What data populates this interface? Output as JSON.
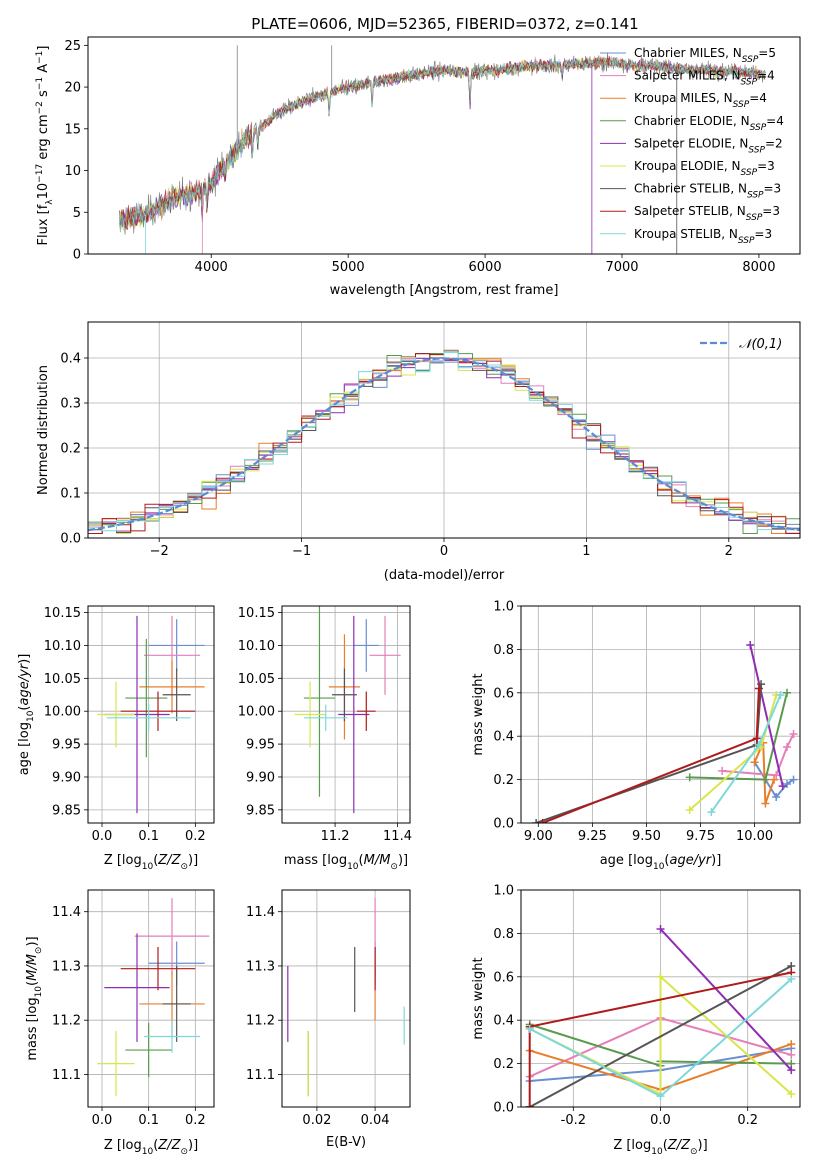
{
  "figure_title": "PLATE=0606, MJD=52365, FIBERID=0372, z=0.141",
  "series_colors": [
    "#6a8fd0",
    "#e57fb8",
    "#e87e2a",
    "#5a9a4e",
    "#8e2db3",
    "#d8e64c",
    "#555555",
    "#b01a1a",
    "#7dd8dc"
  ],
  "chart_data": [
    {
      "id": "spectrum",
      "type": "line",
      "title": "PLATE=0606, MJD=52365, FIBERID=0372, z=0.141",
      "xlabel": "wavelength [Angstrom, rest frame]",
      "ylabel": "Flux [f_λ 10^-17 erg cm^-2 s^-1 A^-1]",
      "xlim": [
        3100,
        8300
      ],
      "ylim": [
        0,
        26
      ],
      "xticks": [
        4000,
        5000,
        6000,
        7000,
        8000
      ],
      "yticks": [
        0,
        5,
        10,
        15,
        20,
        25
      ],
      "legend_position": "top-right",
      "grid": false,
      "series": [
        {
          "name": "Chabrier MILES, N_SSP=5"
        },
        {
          "name": "Salpeter MILES, N_SSP=4"
        },
        {
          "name": "Kroupa MILES, N_SSP=4"
        },
        {
          "name": "Chabrier ELODIE, N_SSP=4"
        },
        {
          "name": "Salpeter ELODIE, N_SSP=2"
        },
        {
          "name": "Kroupa ELODIE, N_SSP=3"
        },
        {
          "name": "Chabrier STELIB, N_SSP=3"
        },
        {
          "name": "Salpeter STELIB, N_SSP=3"
        },
        {
          "name": "Kroupa STELIB, N_SSP=3"
        }
      ],
      "observed_continuum": {
        "x": [
          3330,
          3500,
          3700,
          3900,
          4000,
          4100,
          4300,
          4500,
          4700,
          4900,
          5100,
          5300,
          5500,
          5700,
          5900,
          6100,
          6300,
          6500,
          6700,
          6900,
          7100,
          7300,
          7500,
          7700,
          7900,
          8050
        ],
        "y": [
          4,
          4.5,
          6.5,
          7.5,
          8.5,
          11,
          14.5,
          17,
          18.5,
          19.5,
          20.3,
          21,
          21.5,
          22,
          21.8,
          22,
          22.5,
          22.6,
          22.8,
          23,
          22.6,
          22.5,
          22,
          22,
          21.8,
          21.5
        ]
      }
    },
    {
      "id": "residuals",
      "type": "step",
      "xlabel": "(data-model)/error",
      "ylabel": "Normed distribution",
      "xlim": [
        -2.5,
        2.5
      ],
      "ylim": [
        0,
        0.48
      ],
      "xticks": [
        -2,
        -1,
        0,
        1,
        2
      ],
      "yticks": [
        0.0,
        0.1,
        0.2,
        0.3,
        0.4
      ],
      "grid": true,
      "legend": "𝒩(0,1)",
      "legend_position": "top-right",
      "histogram_bin_width": 0.1
    },
    {
      "id": "age_vs_Z",
      "type": "errorbar",
      "xlabel": "Z [log10(Z/Z⊙)]",
      "ylabel": "age  [log10(age/yr)]",
      "xlim": [
        -0.03,
        0.24
      ],
      "ylim": [
        9.83,
        10.16
      ],
      "xticks": [
        0.0,
        0.1,
        0.2
      ],
      "yticks": [
        9.85,
        9.9,
        9.95,
        10.0,
        10.05,
        10.1,
        10.15
      ],
      "grid": true,
      "points": [
        {
          "x": 0.16,
          "xerr": 0.06,
          "y": 10.1,
          "yerr": 0.04
        },
        {
          "x": 0.15,
          "xerr": 0.06,
          "y": 10.085,
          "yerr": 0.06
        },
        {
          "x": 0.15,
          "xerr": 0.07,
          "y": 10.037,
          "yerr": 0.04
        },
        {
          "x": 0.095,
          "xerr": 0.045,
          "y": 10.02,
          "yerr": 0.09
        },
        {
          "x": 0.075,
          "xerr": 0.07,
          "y": 9.995,
          "yerr": 0.15
        },
        {
          "x": 0.03,
          "xerr": 0.04,
          "y": 9.995,
          "yerr": 0.05
        },
        {
          "x": 0.16,
          "xerr": 0.03,
          "y": 10.025,
          "yerr": 0.04
        },
        {
          "x": 0.12,
          "xerr": 0.08,
          "y": 10.0,
          "yerr": 0.03
        },
        {
          "x": 0.1,
          "xerr": 0.09,
          "y": 9.99,
          "yerr": 0.02
        }
      ]
    },
    {
      "id": "age_vs_mass",
      "type": "errorbar",
      "xlabel": "mass [log10(M/M⊙)]",
      "ylabel": "",
      "xlim": [
        11.03,
        11.44
      ],
      "ylim": [
        9.83,
        10.16
      ],
      "xticks": [
        11.2,
        11.4
      ],
      "yticks": [
        9.85,
        9.9,
        9.95,
        10.0,
        10.05,
        10.1,
        10.15
      ],
      "grid": true,
      "points": [
        {
          "x": 11.3,
          "xerr": 0.04,
          "y": 10.1,
          "yerr": 0.04
        },
        {
          "x": 11.36,
          "xerr": 0.05,
          "y": 10.085,
          "yerr": 0.06
        },
        {
          "x": 11.23,
          "xerr": 0.05,
          "y": 10.037,
          "yerr": 0.08
        },
        {
          "x": 11.15,
          "xerr": 0.05,
          "y": 10.02,
          "yerr": 0.15
        },
        {
          "x": 11.26,
          "xerr": 0.05,
          "y": 9.995,
          "yerr": 0.15
        },
        {
          "x": 11.12,
          "xerr": 0.05,
          "y": 9.995,
          "yerr": 0.05
        },
        {
          "x": 11.23,
          "xerr": 0.04,
          "y": 10.025,
          "yerr": 0.04
        },
        {
          "x": 11.3,
          "xerr": 0.03,
          "y": 10.0,
          "yerr": 0.03
        },
        {
          "x": 11.17,
          "xerr": 0.07,
          "y": 9.99,
          "yerr": 0.02
        }
      ]
    },
    {
      "id": "weight_vs_age",
      "type": "line",
      "xlabel": "age  [log10(age/yr)]",
      "ylabel": "mass weight",
      "xlim": [
        8.92,
        10.21
      ],
      "ylim": [
        0,
        1
      ],
      "xticks": [
        9.0,
        9.25,
        9.5,
        9.75,
        10.0
      ],
      "yticks": [
        0.0,
        0.2,
        0.4,
        0.6,
        0.8,
        1.0
      ],
      "grid": true,
      "series": [
        {
          "x": [
            10.0,
            10.1,
            10.15,
            10.18
          ],
          "y": [
            0.28,
            0.12,
            0.18,
            0.2
          ]
        },
        {
          "x": [
            9.85,
            10.1,
            10.15,
            10.18
          ],
          "y": [
            0.24,
            0.22,
            0.35,
            0.41
          ]
        },
        {
          "x": [
            10.0,
            10.04,
            10.05,
            10.09
          ],
          "y": [
            0.28,
            0.37,
            0.09,
            0.2
          ]
        },
        {
          "x": [
            9.7,
            10.05,
            10.15
          ],
          "y": [
            0.21,
            0.2,
            0.6
          ]
        },
        {
          "x": [
            9.98,
            10.13
          ],
          "y": [
            0.82,
            0.17
          ]
        },
        {
          "x": [
            9.7,
            10.03,
            10.1
          ],
          "y": [
            0.06,
            0.35,
            0.59
          ]
        },
        {
          "x": [
            8.99,
            10.01,
            10.03
          ],
          "y": [
            0.0,
            0.36,
            0.64
          ]
        },
        {
          "x": [
            9.02,
            10.01,
            10.02
          ],
          "y": [
            0.0,
            0.39,
            0.62
          ]
        },
        {
          "x": [
            9.8,
            10.02,
            10.12
          ],
          "y": [
            0.05,
            0.36,
            0.59
          ]
        }
      ]
    },
    {
      "id": "mass_vs_Z",
      "type": "errorbar",
      "xlabel": "Z [log10(Z/Z⊙)]",
      "ylabel": "mass [log10(M/M⊙)]",
      "xlim": [
        -0.03,
        0.24
      ],
      "ylim": [
        11.04,
        11.44
      ],
      "xticks": [
        0.0,
        0.1,
        0.2
      ],
      "yticks": [
        11.1,
        11.2,
        11.3,
        11.4
      ],
      "grid": true,
      "points": [
        {
          "x": 0.16,
          "xerr": 0.06,
          "y": 11.305,
          "yerr": 0.04
        },
        {
          "x": 0.15,
          "xerr": 0.08,
          "y": 11.355,
          "yerr": 0.07
        },
        {
          "x": 0.15,
          "xerr": 0.07,
          "y": 11.23,
          "yerr": 0.06
        },
        {
          "x": 0.1,
          "xerr": 0.05,
          "y": 11.145,
          "yerr": 0.05
        },
        {
          "x": 0.075,
          "xerr": 0.07,
          "y": 11.26,
          "yerr": 0.1
        },
        {
          "x": 0.03,
          "xerr": 0.04,
          "y": 11.12,
          "yerr": 0.06
        },
        {
          "x": 0.16,
          "xerr": 0.03,
          "y": 11.23,
          "yerr": 0.07
        },
        {
          "x": 0.12,
          "xerr": 0.08,
          "y": 11.295,
          "yerr": 0.04
        },
        {
          "x": 0.15,
          "xerr": 0.06,
          "y": 11.17,
          "yerr": 0.03
        }
      ]
    },
    {
      "id": "mass_vs_ebv",
      "type": "errorbar",
      "xlabel": "E(B-V)",
      "ylabel": "",
      "xlim": [
        0.008,
        0.052
      ],
      "ylim": [
        11.04,
        11.44
      ],
      "xticks": [
        0.02,
        0.04
      ],
      "yticks": [
        11.1,
        11.2,
        11.3,
        11.4
      ],
      "grid": true,
      "points": [
        {
          "x": 0.04,
          "xerr": 0,
          "y": 11.305,
          "yerr": 0.04
        },
        {
          "x": 0.04,
          "xerr": 0,
          "y": 11.355,
          "yerr": 0.07
        },
        {
          "x": 0.04,
          "xerr": 0,
          "y": 11.25,
          "yerr": 0.05
        },
        {
          "x": 0.017,
          "xerr": 0,
          "y": 11.12,
          "yerr": 0.06
        },
        {
          "x": 0.01,
          "xerr": 0,
          "y": 11.23,
          "yerr": 0.07
        },
        {
          "x": 0.017,
          "xerr": 0,
          "y": 11.12,
          "yerr": 0.06
        },
        {
          "x": 0.033,
          "xerr": 0,
          "y": 11.275,
          "yerr": 0.06
        },
        {
          "x": 0.04,
          "xerr": 0,
          "y": 11.295,
          "yerr": 0.04
        },
        {
          "x": 0.05,
          "xerr": 0,
          "y": 11.19,
          "yerr": 0.035
        }
      ]
    },
    {
      "id": "weight_vs_Z",
      "type": "line",
      "xlabel": "Z [log10(Z/Z⊙)]",
      "ylabel": "mass weight",
      "xlim": [
        -0.32,
        0.32
      ],
      "ylim": [
        0,
        1
      ],
      "xticks": [
        -0.2,
        0.0,
        0.2
      ],
      "yticks": [
        0.0,
        0.2,
        0.4,
        0.6,
        0.8,
        1.0
      ],
      "grid": true,
      "series": [
        {
          "x": [
            -0.3,
            0.0,
            0.3
          ],
          "y": [
            0.12,
            0.17,
            0.27
          ]
        },
        {
          "x": [
            -0.3,
            0.0,
            0.3
          ],
          "y": [
            0.14,
            0.41,
            0.24
          ]
        },
        {
          "x": [
            -0.3,
            0.0,
            0.3
          ],
          "y": [
            0.26,
            0.08,
            0.29
          ]
        },
        {
          "x": [
            -0.3,
            0.0,
            0.0,
            0.3
          ],
          "y": [
            0.38,
            0.19,
            0.21,
            0.2
          ]
        },
        {
          "x": [
            0.0,
            0.3
          ],
          "y": [
            0.82,
            0.17
          ]
        },
        {
          "x": [
            -0.3,
            0.0,
            0.0,
            0.3
          ],
          "y": [
            0.36,
            0.06,
            0.6,
            0.06
          ]
        },
        {
          "x": [
            -0.3,
            -0.3,
            0.3
          ],
          "y": [
            0.0,
            0.0,
            0.65
          ]
        },
        {
          "x": [
            -0.3,
            -0.3,
            0.3
          ],
          "y": [
            0.0,
            0.37,
            0.62
          ]
        },
        {
          "x": [
            -0.3,
            0.0,
            0.3
          ],
          "y": [
            0.36,
            0.05,
            0.59
          ]
        }
      ]
    }
  ]
}
